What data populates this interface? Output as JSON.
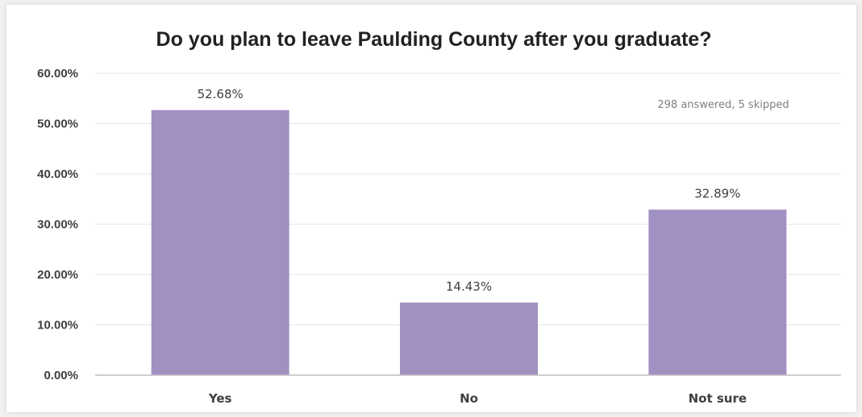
{
  "chart_data": {
    "type": "bar",
    "title": "Do you plan to leave Paulding County after you graduate?",
    "categories": [
      "Yes",
      "No",
      "Not sure"
    ],
    "values": [
      52.68,
      14.43,
      32.89
    ],
    "value_labels": [
      "52.68%",
      "14.43%",
      "32.89%"
    ],
    "ylim": [
      0,
      60
    ],
    "yticks": [
      0,
      10,
      20,
      30,
      40,
      50,
      60
    ],
    "ytick_labels": [
      "0.00%",
      "10.00%",
      "20.00%",
      "30.00%",
      "40.00%",
      "50.00%",
      "60.00%"
    ],
    "annotation": "298 answered, 5 skipped",
    "grid": true,
    "legend": "none",
    "colors": {
      "bar": "#a190c2",
      "grid": "#e6e6e6",
      "axis": "#bfbfbf"
    }
  }
}
